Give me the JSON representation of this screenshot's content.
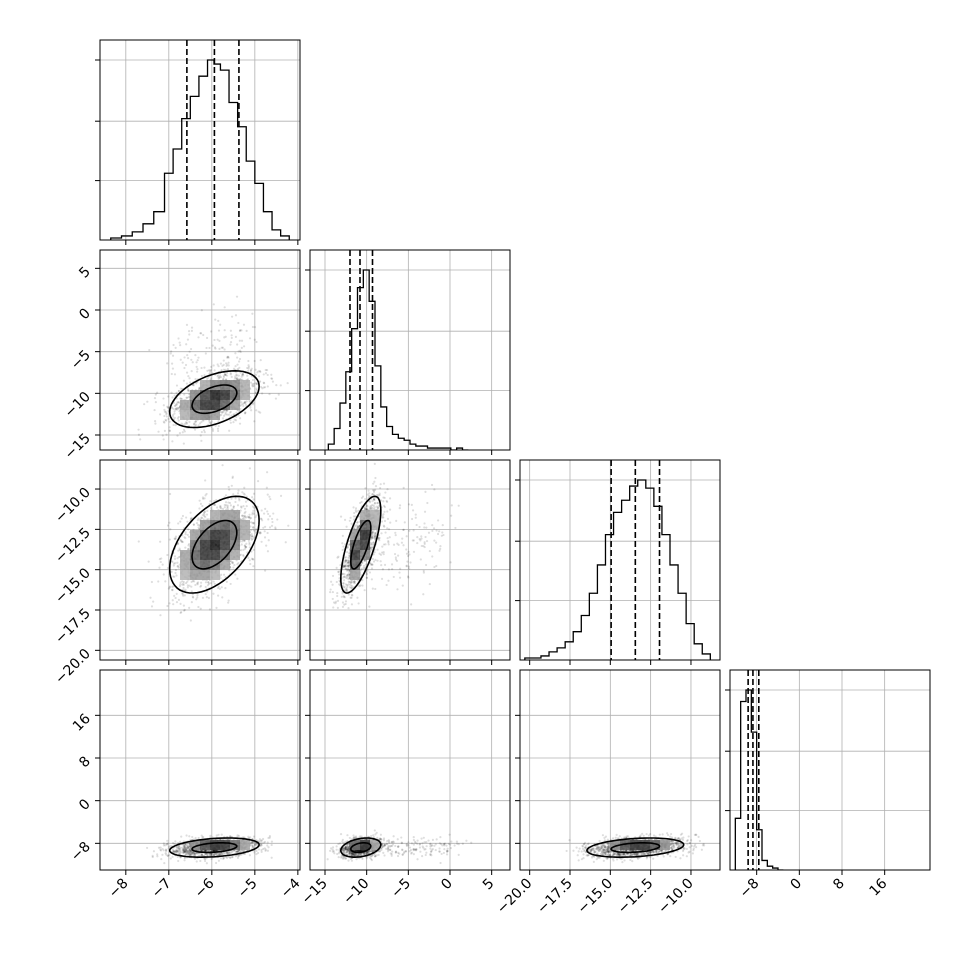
{
  "chart_data": {
    "type": "corner",
    "title": "",
    "parameter_count": 4,
    "grid": true,
    "colors": {
      "line": "#000000",
      "grid": "#b0b0b0",
      "points": "#000000",
      "background": "#ffffff"
    },
    "parameters": [
      {
        "name": "",
        "range": [
          -8.6,
          -3.95
        ],
        "ticks": [
          -8,
          -7,
          -6,
          -5,
          -4
        ],
        "tick_labels": [
          "−8",
          "−7",
          "−6",
          "−5",
          "−4"
        ]
      },
      {
        "name": "",
        "range": [
          -16.8,
          7.2
        ],
        "ticks": [
          -15,
          -10,
          -5,
          0,
          5
        ],
        "tick_labels": [
          "−15",
          "−10",
          "−5",
          "0",
          "5"
        ]
      },
      {
        "name": "",
        "range": [
          -20.6,
          -8.2
        ],
        "ticks": [
          -20,
          -17.5,
          -15,
          -12.5,
          -10
        ],
        "tick_labels": [
          "−20.0",
          "−17.5",
          "−15.0",
          "−12.5",
          "−10.0"
        ]
      },
      {
        "name": "",
        "range": [
          -13,
          24.5
        ],
        "ticks": [
          -8,
          0,
          8,
          16
        ],
        "tick_labels": [
          "−8",
          "0",
          "8",
          "16"
        ]
      }
    ],
    "quantiles": [
      0.16,
      0.5,
      0.84
    ],
    "marginals": [
      {
        "parameter": 0,
        "quantile_values": [
          -6.58,
          -5.94,
          -5.37
        ],
        "bin_edges": [
          -8.35,
          -8.1,
          -7.85,
          -7.6,
          -7.35,
          -7.1,
          -6.9,
          -6.7,
          -6.5,
          -6.3,
          -6.1,
          -5.95,
          -5.8,
          -5.6,
          -5.4,
          -5.2,
          -5.0,
          -4.8,
          -4.6,
          -4.4,
          -4.2
        ],
        "counts": [
          1,
          2,
          4,
          8,
          14,
          33,
          45,
          60,
          71,
          81,
          89,
          87,
          84,
          68,
          56,
          39,
          28,
          14,
          5,
          2
        ]
      },
      {
        "parameter": 1,
        "quantile_values": [
          -12.0,
          -10.8,
          -9.3
        ],
        "bin_edges": [
          -14.6,
          -13.9,
          -13.2,
          -12.5,
          -11.8,
          -11.1,
          -10.4,
          -9.7,
          -9.0,
          -8.3,
          -7.6,
          -6.9,
          -6.2,
          -5.5,
          -4.8,
          -4.1,
          -3.4,
          -2.7,
          -2.0,
          -1.3,
          -0.6,
          0.1,
          0.8,
          1.5,
          2.2
        ],
        "counts": [
          3,
          11,
          24,
          40,
          62,
          83,
          92,
          76,
          43,
          22,
          12,
          8,
          6,
          5,
          3,
          2,
          2,
          1,
          1,
          1,
          1,
          0,
          1,
          0
        ]
      },
      {
        "parameter": 2,
        "quantile_values": [
          -14.95,
          -13.45,
          -11.95
        ],
        "bin_edges": [
          -20.3,
          -19.8,
          -19.3,
          -18.8,
          -18.3,
          -17.8,
          -17.3,
          -16.8,
          -16.3,
          -15.8,
          -15.3,
          -14.8,
          -14.3,
          -13.8,
          -13.3,
          -12.8,
          -12.3,
          -11.8,
          -11.3,
          -10.8,
          -10.3,
          -9.8,
          -9.3,
          -8.8
        ],
        "counts": [
          1,
          1,
          2,
          4,
          6,
          9,
          14,
          22,
          33,
          47,
          62,
          73,
          79,
          86,
          89,
          85,
          76,
          62,
          47,
          33,
          18,
          8,
          3
        ]
      },
      {
        "parameter": 3,
        "quantile_values": [
          -9.6,
          -8.7,
          -7.6
        ],
        "bin_edges": [
          -12.0,
          -11.0,
          -10.0,
          -9.0,
          -8.0,
          -7.0,
          -6.0,
          -5.0,
          -4.0,
          -3.0
        ],
        "counts": [
          27,
          88,
          94,
          72,
          21,
          5,
          2,
          1,
          0
        ]
      }
    ],
    "joint_distributions": [
      {
        "x": 0,
        "y": 1,
        "mean": [
          -5.94,
          -10.7
        ],
        "sigma": [
          0.52,
          1.7
        ],
        "correlation": 0.45,
        "tail": {
          "direction": "y",
          "length": 9,
          "fraction": 0.12
        }
      },
      {
        "x": 0,
        "y": 2,
        "mean": [
          -5.94,
          -13.45
        ],
        "sigma": [
          0.52,
          1.5
        ],
        "correlation": 0.5
      },
      {
        "x": 0,
        "y": 3,
        "mean": [
          -5.94,
          -8.8
        ],
        "sigma": [
          0.52,
          0.9
        ],
        "correlation": 0.3
      },
      {
        "x": 1,
        "y": 2,
        "mean": [
          -10.7,
          -13.45
        ],
        "sigma": [
          1.2,
          1.5
        ],
        "correlation": 0.7,
        "tail": {
          "direction": "x",
          "length": 10,
          "fraction": 0.12
        }
      },
      {
        "x": 1,
        "y": 3,
        "mean": [
          -10.7,
          -8.8
        ],
        "sigma": [
          1.2,
          0.9
        ],
        "correlation": 0.3,
        "tail": {
          "direction": "x",
          "length": 11,
          "fraction": 0.12
        }
      },
      {
        "x": 2,
        "y": 3,
        "mean": [
          -13.45,
          -8.8
        ],
        "sigma": [
          1.5,
          0.9
        ],
        "correlation": 0.3
      }
    ],
    "contour_levels": [
      0.393,
      0.865
    ]
  }
}
